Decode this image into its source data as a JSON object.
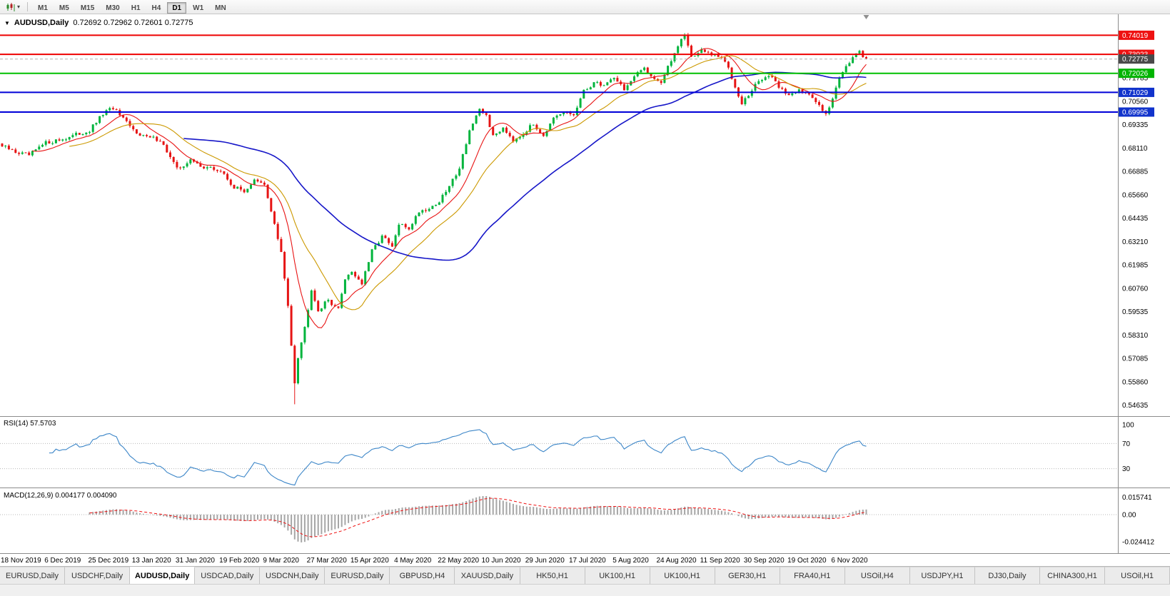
{
  "toolbar": {
    "timeframes": [
      "M1",
      "M5",
      "M15",
      "M30",
      "H1",
      "H4",
      "D1",
      "W1",
      "MN"
    ],
    "active_timeframe": "D1"
  },
  "chart": {
    "collapse_glyph": "▼",
    "symbol_label": "AUDUSD,Daily",
    "ohlc_text": "0.72692 0.72962 0.72601 0.72775"
  },
  "indicators": {
    "rsi_label": "RSI(14) 57.5703",
    "macd_label": "MACD(12,26,9) 0.004177 0.004090"
  },
  "chart_data": [
    {
      "type": "candlestick",
      "title": "AUDUSD,Daily",
      "n_candles": 258,
      "candles_per_x_tick": 13,
      "x_tick_labels": [
        "18 Nov 2019",
        "6 Dec 2019",
        "25 Dec 2019",
        "13 Jan 2020",
        "31 Jan 2020",
        "19 Feb 2020",
        "9 Mar 2020",
        "27 Mar 2020",
        "15 Apr 2020",
        "4 May 2020",
        "22 May 2020",
        "10 Jun 2020",
        "29 Jun 2020",
        "17 Jul 2020",
        "5 Aug 2020",
        "24 Aug 2020",
        "11 Sep 2020",
        "30 Sep 2020",
        "19 Oct 2020",
        "6 Nov 2020"
      ],
      "y_axis": {
        "max": 0.7512,
        "min": 0.5406,
        "tick_labels": [
          "0.71785",
          "0.70560",
          "0.69335",
          "0.68110",
          "0.66885",
          "0.65660",
          "0.64435",
          "0.63210",
          "0.61985",
          "0.60760",
          "0.59535",
          "0.58310",
          "0.57085",
          "0.55860",
          "0.54635"
        ]
      },
      "price_path_anchors": [
        [
          0,
          0.682
        ],
        [
          4,
          0.679
        ],
        [
          8,
          0.6772
        ],
        [
          13,
          0.6838
        ],
        [
          18,
          0.6858
        ],
        [
          22,
          0.688
        ],
        [
          26,
          0.6902
        ],
        [
          30,
          0.699
        ],
        [
          33,
          0.7022
        ],
        [
          36,
          0.696
        ],
        [
          39,
          0.6905
        ],
        [
          43,
          0.6868
        ],
        [
          47,
          0.6855
        ],
        [
          52,
          0.67
        ],
        [
          56,
          0.6745
        ],
        [
          60,
          0.6712
        ],
        [
          65,
          0.669
        ],
        [
          69,
          0.6605
        ],
        [
          72,
          0.6585
        ],
        [
          75,
          0.664
        ],
        [
          78,
          0.6615
        ],
        [
          80,
          0.6485
        ],
        [
          83,
          0.626
        ],
        [
          85,
          0.5985
        ],
        [
          87,
          0.5585
        ],
        [
          88,
          0.572
        ],
        [
          90,
          0.587
        ],
        [
          92,
          0.6075
        ],
        [
          94,
          0.596
        ],
        [
          97,
          0.6015
        ],
        [
          100,
          0.5965
        ],
        [
          102,
          0.613
        ],
        [
          104,
          0.6165
        ],
        [
          107,
          0.61
        ],
        [
          110,
          0.627
        ],
        [
          113,
          0.635
        ],
        [
          116,
          0.629
        ],
        [
          118,
          0.641
        ],
        [
          121,
          0.639
        ],
        [
          124,
          0.648
        ],
        [
          127,
          0.6495
        ],
        [
          130,
          0.653
        ],
        [
          133,
          0.661
        ],
        [
          136,
          0.671
        ],
        [
          139,
          0.6905
        ],
        [
          142,
          0.7005
        ],
        [
          144,
          0.6985
        ],
        [
          146,
          0.687
        ],
        [
          149,
          0.692
        ],
        [
          152,
          0.6855
        ],
        [
          155,
          0.689
        ],
        [
          158,
          0.6935
        ],
        [
          161,
          0.688
        ],
        [
          164,
          0.696
        ],
        [
          167,
          0.6995
        ],
        [
          170,
          0.6985
        ],
        [
          173,
          0.7105
        ],
        [
          176,
          0.7155
        ],
        [
          179,
          0.714
        ],
        [
          182,
          0.7185
        ],
        [
          185,
          0.712
        ],
        [
          188,
          0.718
        ],
        [
          191,
          0.7235
        ],
        [
          193,
          0.719
        ],
        [
          196,
          0.7155
        ],
        [
          199,
          0.727
        ],
        [
          202,
          0.739
        ],
        [
          203,
          0.7405
        ],
        [
          205,
          0.729
        ],
        [
          208,
          0.732
        ],
        [
          211,
          0.73
        ],
        [
          214,
          0.7285
        ],
        [
          216,
          0.723
        ],
        [
          218,
          0.7135
        ],
        [
          220,
          0.705
        ],
        [
          222,
          0.7085
        ],
        [
          225,
          0.7165
        ],
        [
          228,
          0.719
        ],
        [
          231,
          0.7135
        ],
        [
          234,
          0.7085
        ],
        [
          237,
          0.7125
        ],
        [
          240,
          0.7085
        ],
        [
          243,
          0.7035
        ],
        [
          245,
          0.6998
        ],
        [
          247,
          0.7065
        ],
        [
          249,
          0.7185
        ],
        [
          251,
          0.7245
        ],
        [
          253,
          0.7285
        ],
        [
          255,
          0.731
        ],
        [
          257,
          0.7278
        ]
      ],
      "spike_low": {
        "index": 87,
        "price": 0.5468
      },
      "up_color": "#00b43c",
      "down_color": "#e61414",
      "moving_averages": [
        {
          "period": 10,
          "color": "#e81414",
          "width": 1.1
        },
        {
          "period": 21,
          "color": "#cc9900",
          "width": 1.1
        },
        {
          "period": 55,
          "color": "#1616c8",
          "width": 1.6
        }
      ],
      "horizontal_lines": [
        {
          "value": 0.74019,
          "color": "#ee0000",
          "width": 2
        },
        {
          "value": 0.73023,
          "color": "#ee0000",
          "width": 2
        },
        {
          "value": 0.72026,
          "color": "#00c000",
          "width": 2
        },
        {
          "value": 0.71029,
          "color": "#0000d8",
          "width": 2
        },
        {
          "value": 0.69995,
          "color": "#0000d8",
          "width": 2
        }
      ],
      "axis_badges": [
        {
          "label": "0.74019",
          "value": 0.74019,
          "color": "#ee1111",
          "kind": "line-marker"
        },
        {
          "label": "0.73023",
          "value": 0.73023,
          "color": "#ee1111",
          "kind": "line-marker"
        },
        {
          "label": "0.72775",
          "value": 0.72775,
          "color": "#4a4a4a",
          "kind": "current-price"
        },
        {
          "label": "0.72026",
          "value": 0.72026,
          "color": "#00b400",
          "kind": "line-marker"
        },
        {
          "label": "0.71029",
          "value": 0.71029,
          "color": "#1133cc",
          "kind": "line-marker"
        },
        {
          "label": "0.69995",
          "value": 0.69995,
          "color": "#1133cc",
          "kind": "line-marker"
        }
      ],
      "current_price": 0.72775
    },
    {
      "type": "line",
      "name": "RSI(14)",
      "period": 14,
      "current_value": 57.5703,
      "range": [
        0,
        100
      ],
      "levels": [
        70,
        30
      ],
      "y_tick_labels": [
        "100",
        "70",
        "30"
      ],
      "y_tick_values": [
        100,
        70,
        30
      ],
      "color": "#3c86c8",
      "derived_from": "candle-closes"
    },
    {
      "type": "macd",
      "name": "MACD(12,26,9)",
      "params": [
        12,
        26,
        9
      ],
      "current_values": [
        0.004177,
        0.00409
      ],
      "y_tick_labels": [
        "0.015741",
        "0.00",
        "-0.024412"
      ],
      "y_tick_values": [
        0.015741,
        0,
        -0.024412
      ],
      "histogram_color": "#a6a6a6",
      "signal_color": "#ee1111",
      "signal_style": "dashed",
      "derived_from": "candle-closes"
    }
  ],
  "tabs": [
    {
      "label": "EURUSD,Daily",
      "active": false
    },
    {
      "label": "USDCHF,Daily",
      "active": false
    },
    {
      "label": "AUDUSD,Daily",
      "active": true
    },
    {
      "label": "USDCAD,Daily",
      "active": false
    },
    {
      "label": "USDCNH,Daily",
      "active": false
    },
    {
      "label": "EURUSD,Daily",
      "active": false
    },
    {
      "label": "GBPUSD,H4",
      "active": false
    },
    {
      "label": "XAUUSD,Daily",
      "active": false
    },
    {
      "label": "HK50,H1",
      "active": false
    },
    {
      "label": "UK100,H1",
      "active": false
    },
    {
      "label": "UK100,H1",
      "active": false
    },
    {
      "label": "GER30,H1",
      "active": false
    },
    {
      "label": "FRA40,H1",
      "active": false
    },
    {
      "label": "USOil,H4",
      "active": false
    },
    {
      "label": "USDJPY,H1",
      "active": false
    },
    {
      "label": "DJ30,Daily",
      "active": false
    },
    {
      "label": "CHINA300,H1",
      "active": false
    },
    {
      "label": "USOil,H1",
      "active": false
    }
  ]
}
